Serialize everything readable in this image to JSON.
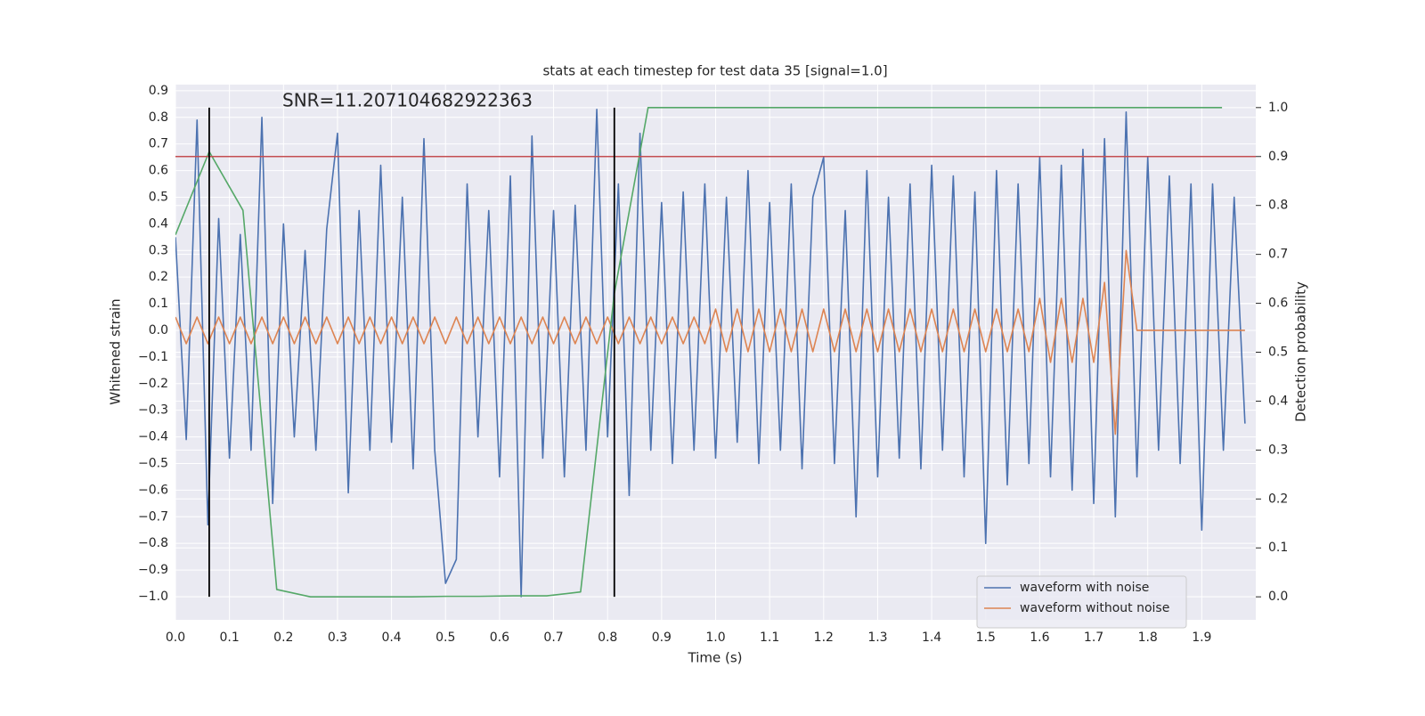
{
  "chart_data": {
    "type": "line",
    "title": "stats at each timestep for test data 35 [signal=1.0]",
    "annotation": "SNR=11.207104682922363",
    "xlabel": "Time (s)",
    "ylabel": "Whitened strain",
    "y2label": "Detection probability",
    "grid": true,
    "legend": "lower right",
    "xlim": [
      0,
      2.0
    ],
    "ylim": [
      -1.087,
      0.923
    ],
    "y2lim": [
      -0.047,
      1.047
    ],
    "xticks": [
      {
        "value": 0,
        "label": "0.0"
      },
      0.1,
      0.2,
      0.3,
      0.4,
      0.5,
      0.6,
      0.7,
      0.8,
      0.9,
      {
        "value": 1,
        "label": "1.0"
      },
      1.1,
      1.2,
      1.3,
      1.4,
      1.5,
      1.6,
      1.7,
      1.8,
      1.9
    ],
    "yticks": [
      {
        "value": -1,
        "label": "−1.0"
      },
      {
        "value": -0.9,
        "label": "−0.9"
      },
      {
        "value": -0.8,
        "label": "−0.8"
      },
      {
        "value": -0.7,
        "label": "−0.7"
      },
      {
        "value": -0.6,
        "label": "−0.6"
      },
      {
        "value": -0.5,
        "label": "−0.5"
      },
      {
        "value": -0.4,
        "label": "−0.4"
      },
      {
        "value": -0.3,
        "label": "−0.3"
      },
      {
        "value": -0.2,
        "label": "−0.2"
      },
      {
        "value": -0.1,
        "label": "−0.1"
      },
      {
        "value": 0,
        "label": "0.0"
      },
      0.1,
      0.2,
      0.3,
      0.4,
      0.5,
      0.6,
      0.7,
      0.8,
      0.9
    ],
    "y2ticks": [
      {
        "value": 0,
        "label": "0.0"
      },
      0.1,
      0.2,
      0.3,
      0.4,
      0.5,
      0.6,
      0.7,
      0.8,
      0.9,
      {
        "value": 1,
        "label": "1.0"
      }
    ],
    "threshold": 0.9,
    "threshold_color": "#c44e52",
    "vlines": [
      0.0625,
      0.8125
    ],
    "vline_color": "#000000",
    "x": [
      0,
      0.02,
      0.04,
      0.06,
      0.08,
      0.1,
      0.12,
      0.14,
      0.16,
      0.18,
      0.2,
      0.22,
      0.24,
      0.26,
      0.28,
      0.3,
      0.32,
      0.34,
      0.36,
      0.38,
      0.4,
      0.42,
      0.44,
      0.46,
      0.48,
      0.5,
      0.52,
      0.54,
      0.56,
      0.58,
      0.6,
      0.62,
      0.64,
      0.66,
      0.68,
      0.7,
      0.72,
      0.74,
      0.76,
      0.78,
      0.8,
      0.82,
      0.84,
      0.86,
      0.88,
      0.9,
      0.92,
      0.94,
      0.96,
      0.98,
      1.0,
      1.02,
      1.04,
      1.06,
      1.08,
      1.1,
      1.12,
      1.14,
      1.16,
      1.18,
      1.2,
      1.22,
      1.24,
      1.26,
      1.28,
      1.3,
      1.32,
      1.34,
      1.36,
      1.38,
      1.4,
      1.42,
      1.44,
      1.46,
      1.48,
      1.5,
      1.52,
      1.54,
      1.56,
      1.58,
      1.6,
      1.62,
      1.64,
      1.66,
      1.68,
      1.7,
      1.72,
      1.74,
      1.76,
      1.78,
      1.8,
      1.82,
      1.84,
      1.86,
      1.88,
      1.9,
      1.92,
      1.94,
      1.96,
      1.98
    ],
    "series": [
      {
        "name": "waveform with noise",
        "color": "#4c72b0",
        "values": [
          0.35,
          -0.41,
          0.79,
          -0.73,
          0.42,
          -0.48,
          0.36,
          -0.45,
          0.8,
          -0.65,
          0.4,
          -0.4,
          0.3,
          -0.45,
          0.38,
          0.74,
          -0.61,
          0.45,
          -0.45,
          0.62,
          -0.42,
          0.5,
          -0.52,
          0.72,
          -0.45,
          -0.95,
          -0.86,
          0.55,
          -0.4,
          0.45,
          -0.55,
          0.58,
          -1.0,
          0.73,
          -0.48,
          0.45,
          -0.55,
          0.47,
          -0.45,
          0.83,
          -0.4,
          0.55,
          -0.62,
          0.74,
          -0.45,
          0.48,
          -0.5,
          0.52,
          -0.45,
          0.55,
          -0.48,
          0.5,
          -0.42,
          0.6,
          -0.5,
          0.48,
          -0.45,
          0.55,
          -0.52,
          0.5,
          0.65,
          -0.5,
          0.45,
          -0.7,
          0.6,
          -0.55,
          0.5,
          -0.48,
          0.55,
          -0.52,
          0.62,
          -0.45,
          0.58,
          -0.55,
          0.52,
          -0.8,
          0.6,
          -0.58,
          0.55,
          -0.5,
          0.65,
          -0.55,
          0.62,
          -0.6,
          0.68,
          -0.65,
          0.72,
          -0.7,
          0.82,
          -0.55,
          0.65,
          -0.45,
          0.58,
          -0.5,
          0.55,
          -0.75,
          0.55,
          -0.45,
          0.5,
          -0.35
        ]
      },
      {
        "name": "waveform without noise",
        "color": "#dd8452",
        "values": [
          0.05,
          -0.05,
          0.05,
          -0.05,
          0.05,
          -0.05,
          0.05,
          -0.05,
          0.05,
          -0.05,
          0.05,
          -0.05,
          0.05,
          -0.05,
          0.05,
          -0.05,
          0.05,
          -0.05,
          0.05,
          -0.05,
          0.05,
          -0.05,
          0.05,
          -0.05,
          0.05,
          -0.05,
          0.05,
          -0.05,
          0.05,
          -0.05,
          0.05,
          -0.05,
          0.05,
          -0.05,
          0.05,
          -0.05,
          0.05,
          -0.05,
          0.05,
          -0.05,
          0.05,
          -0.05,
          0.05,
          -0.05,
          0.05,
          -0.05,
          0.05,
          -0.05,
          0.05,
          -0.05,
          0.08,
          -0.08,
          0.08,
          -0.08,
          0.08,
          -0.08,
          0.08,
          -0.08,
          0.08,
          -0.08,
          0.08,
          -0.08,
          0.08,
          -0.08,
          0.08,
          -0.08,
          0.08,
          -0.08,
          0.08,
          -0.08,
          0.08,
          -0.08,
          0.08,
          -0.08,
          0.08,
          -0.08,
          0.08,
          -0.08,
          0.08,
          -0.08,
          0.12,
          -0.12,
          0.12,
          -0.12,
          0.12,
          -0.12,
          0.18,
          -0.39,
          0.3,
          0,
          0,
          0,
          0,
          0,
          0,
          0,
          0,
          0,
          0,
          0
        ]
      },
      {
        "color": "#55a868",
        "axis": "y2",
        "x": [
          0,
          0.0625,
          0.125,
          0.1875,
          0.25,
          0.3125,
          0.375,
          0.4375,
          0.5,
          0.5625,
          0.625,
          0.6875,
          0.75,
          0.8125,
          0.875,
          0.9375,
          1,
          1.0625,
          1.125,
          1.1875,
          1.25,
          1.3125,
          1.375,
          1.4375,
          1.5,
          1.5625,
          1.625,
          1.6875,
          1.75,
          1.8125,
          1.875,
          1.9375
        ],
        "values": [
          0.74,
          0.91,
          0.79,
          0.015,
          0,
          0,
          0,
          0,
          0.001,
          0.001,
          0.002,
          0.002,
          0.01,
          0.62,
          1,
          1,
          1,
          1,
          1,
          1,
          1,
          1,
          1,
          1,
          1,
          1,
          1,
          1,
          1,
          1,
          1,
          1
        ]
      }
    ]
  }
}
